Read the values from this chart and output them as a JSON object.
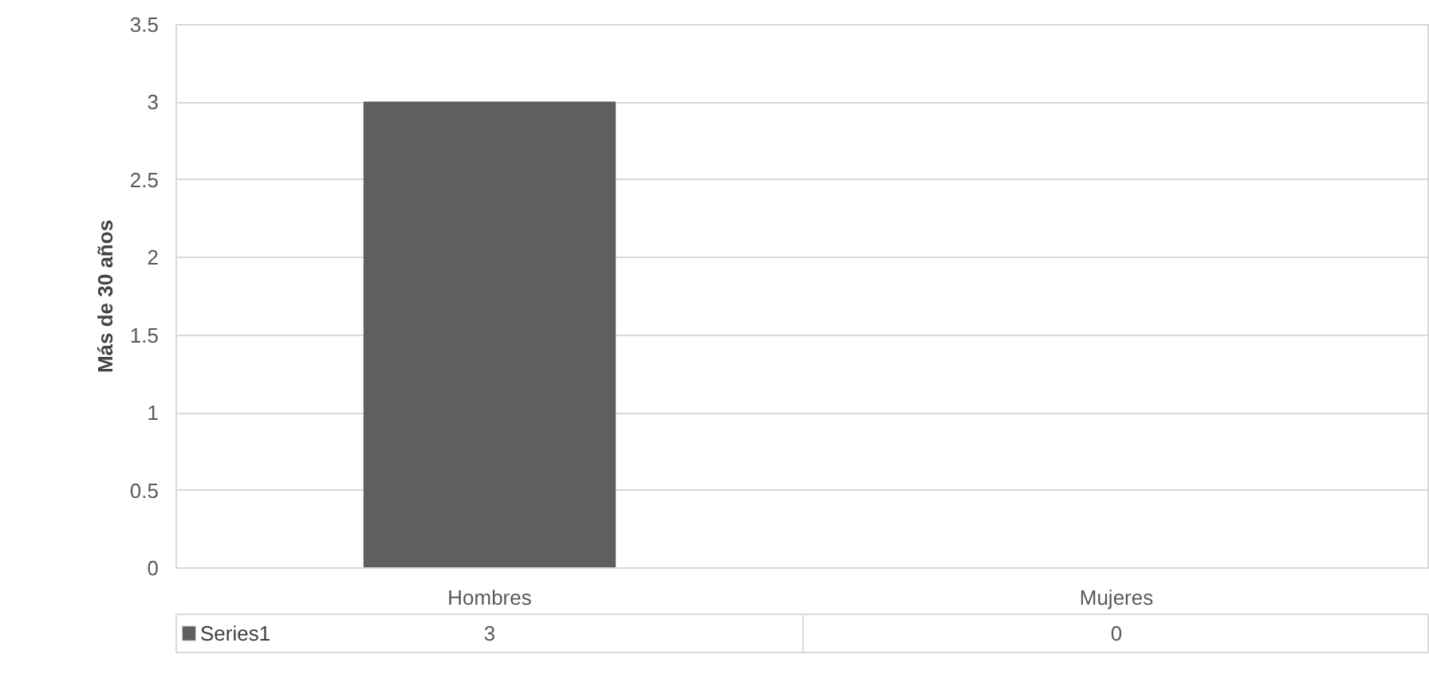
{
  "chart_data": {
    "type": "bar",
    "ylabel": "Más de 30 años",
    "categories": [
      "Hombres",
      "Mujeres"
    ],
    "series": [
      {
        "name": "Series1",
        "color": "#5f5f5f",
        "values": [
          3,
          0
        ]
      }
    ],
    "ylim": [
      0,
      3.5
    ],
    "yticks": [
      0,
      0.5,
      1,
      1.5,
      2,
      2.5,
      3,
      3.5
    ],
    "grid": "y",
    "data_labels": true
  }
}
